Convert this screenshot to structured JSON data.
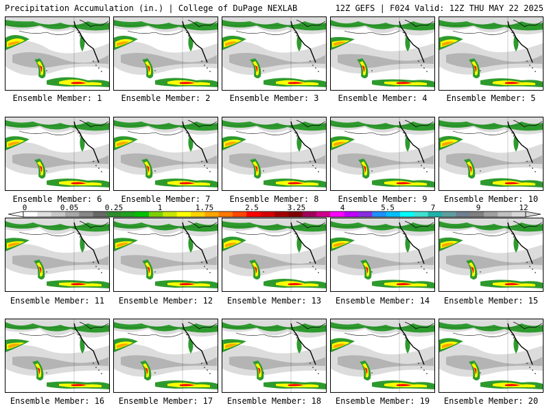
{
  "header": {
    "title_left": "Precipitation Accumulation (in.) | College of DuPage NEXLAB",
    "title_right": "12Z GEFS | F024 Valid: 12Z THU MAY 22 2025"
  },
  "members": [
    {
      "label": "Ensemble Member: 1"
    },
    {
      "label": "Ensemble Member: 2"
    },
    {
      "label": "Ensemble Member: 3"
    },
    {
      "label": "Ensemble Member: 4"
    },
    {
      "label": "Ensemble Member: 5"
    },
    {
      "label": "Ensemble Member: 6"
    },
    {
      "label": "Ensemble Member: 7"
    },
    {
      "label": "Ensemble Member: 8"
    },
    {
      "label": "Ensemble Member: 9"
    },
    {
      "label": "Ensemble Member: 10"
    },
    {
      "label": "Ensemble Member: 11"
    },
    {
      "label": "Ensemble Member: 12"
    },
    {
      "label": "Ensemble Member: 13"
    },
    {
      "label": "Ensemble Member: 14"
    },
    {
      "label": "Ensemble Member: 15"
    },
    {
      "label": "Ensemble Member: 16"
    },
    {
      "label": "Ensemble Member: 17"
    },
    {
      "label": "Ensemble Member: 18"
    },
    {
      "label": "Ensemble Member: 19"
    },
    {
      "label": "Ensemble Member: 20"
    }
  ],
  "colorbar": {
    "tick_labels": [
      "0",
      "0.05",
      "0.25",
      "1",
      "1.75",
      "2.5",
      "3.25",
      "4",
      "5.5",
      "7",
      "9",
      "12"
    ],
    "colors": [
      "#ffffff",
      "#e0e0e0",
      "#c8c8c8",
      "#a8a8a8",
      "#888888",
      "#686868",
      "#2e8b2e",
      "#1fa11f",
      "#00c000",
      "#7cd000",
      "#c8e600",
      "#ffff00",
      "#ffd200",
      "#ffa500",
      "#ff7800",
      "#ff4500",
      "#ff0000",
      "#d40000",
      "#a00000",
      "#800000",
      "#a0005a",
      "#d0008c",
      "#ff00ff",
      "#c000ff",
      "#8a2be2",
      "#1e90ff",
      "#00bfff",
      "#00ffff",
      "#40e0d0",
      "#20b2aa",
      "#5f9ea0",
      "#708090",
      "#808080",
      "#a0a0a0",
      "#c0c0c0",
      "#d8d8d8"
    ]
  },
  "map_colors": {
    "light_gray": "#dcdcdc",
    "mid_gray": "#b4b4b4",
    "dark_gray": "#8c8c8c",
    "green": "#2e9a2e",
    "light_green": "#7cd000",
    "yellow": "#ffff00",
    "orange": "#ffa500",
    "red": "#ff0000",
    "coast": "#000000"
  }
}
